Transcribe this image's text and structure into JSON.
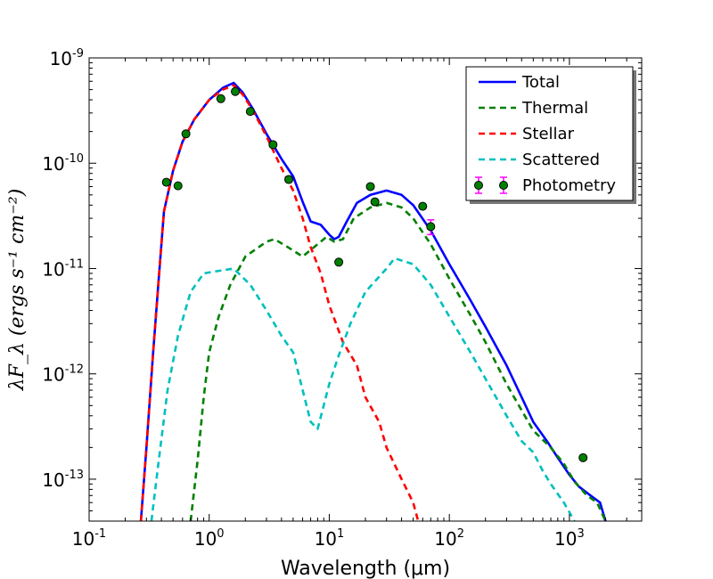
{
  "chart_data": {
    "type": "line",
    "xscale": "log",
    "yscale": "log",
    "xlim": [
      0.1,
      4000
    ],
    "ylim": [
      4e-14,
      1e-09
    ],
    "xlabel": "Wavelength (μm)",
    "ylabel": "λF_λ (ergs s⁻¹ cm⁻²)",
    "x_ticks": [
      {
        "value": 0.1,
        "base": "10",
        "exp": "-1"
      },
      {
        "value": 1,
        "base": "10",
        "exp": "0"
      },
      {
        "value": 10,
        "base": "10",
        "exp": "1"
      },
      {
        "value": 100,
        "base": "10",
        "exp": "2"
      },
      {
        "value": 1000,
        "base": "10",
        "exp": "3"
      }
    ],
    "y_ticks": [
      {
        "value": 1e-13,
        "base": "10",
        "exp": "-13"
      },
      {
        "value": 1e-12,
        "base": "10",
        "exp": "-12"
      },
      {
        "value": 1e-11,
        "base": "10",
        "exp": "-11"
      },
      {
        "value": 1e-10,
        "base": "10",
        "exp": "-10"
      },
      {
        "value": 1e-09,
        "base": "10",
        "exp": "-9"
      }
    ],
    "series": [
      {
        "name": "Total",
        "color": "#0000ff",
        "style": "solid",
        "width": 2.6,
        "points": [
          [
            0.27,
            4e-14
          ],
          [
            0.3,
            2e-13
          ],
          [
            0.34,
            1.5e-12
          ],
          [
            0.38,
            8e-12
          ],
          [
            0.42,
            3.5e-11
          ],
          [
            0.5,
            8.5e-11
          ],
          [
            0.6,
            1.6e-10
          ],
          [
            0.75,
            2.6e-10
          ],
          [
            1.0,
            4e-10
          ],
          [
            1.3,
            5.2e-10
          ],
          [
            1.6,
            5.8e-10
          ],
          [
            1.9,
            4.7e-10
          ],
          [
            2.3,
            3.3e-10
          ],
          [
            3.0,
            1.9e-10
          ],
          [
            4.0,
            1.1e-10
          ],
          [
            5.0,
            7.5e-11
          ],
          [
            6.0,
            4.3e-11
          ],
          [
            7.0,
            2.8e-11
          ],
          [
            8.5,
            2.6e-11
          ],
          [
            10,
            2.1e-11
          ],
          [
            11,
            1.9e-11
          ],
          [
            12,
            2e-11
          ],
          [
            14,
            2.8e-11
          ],
          [
            17,
            4.2e-11
          ],
          [
            22,
            5e-11
          ],
          [
            30,
            5.5e-11
          ],
          [
            40,
            5e-11
          ],
          [
            50,
            4e-11
          ],
          [
            70,
            2.3e-11
          ],
          [
            100,
            1.1e-11
          ],
          [
            150,
            5e-12
          ],
          [
            200,
            2.8e-12
          ],
          [
            300,
            1.2e-12
          ],
          [
            400,
            6e-13
          ],
          [
            500,
            3.5e-13
          ],
          [
            650,
            2.3e-13
          ],
          [
            800,
            1.6e-13
          ],
          [
            1000,
            1.1e-13
          ],
          [
            1200,
            8.5e-14
          ],
          [
            1500,
            7e-14
          ],
          [
            1800,
            6e-14
          ],
          [
            2000,
            4e-14
          ]
        ]
      },
      {
        "name": "Thermal",
        "color": "#008000",
        "style": "dashed",
        "width": 2.6,
        "points": [
          [
            0.7,
            4e-14
          ],
          [
            0.8,
            1.5e-13
          ],
          [
            0.9,
            6e-13
          ],
          [
            1.0,
            1.6e-12
          ],
          [
            1.2,
            3.5e-12
          ],
          [
            1.5,
            7e-12
          ],
          [
            2.0,
            1.3e-11
          ],
          [
            3.0,
            1.8e-11
          ],
          [
            3.5,
            1.9e-11
          ],
          [
            4.5,
            1.6e-11
          ],
          [
            6,
            1.3e-11
          ],
          [
            8,
            1.7e-11
          ],
          [
            9.5,
            2e-11
          ],
          [
            11,
            1.8e-11
          ],
          [
            13,
            1.9e-11
          ],
          [
            16,
            3e-11
          ],
          [
            22,
            3.8e-11
          ],
          [
            30,
            4.2e-11
          ],
          [
            40,
            3.8e-11
          ],
          [
            50,
            3e-11
          ],
          [
            70,
            1.7e-11
          ],
          [
            100,
            8e-12
          ],
          [
            150,
            3.6e-12
          ],
          [
            200,
            2e-12
          ],
          [
            300,
            8e-13
          ],
          [
            400,
            4.5e-13
          ],
          [
            500,
            2.9e-13
          ],
          [
            700,
            2e-13
          ],
          [
            900,
            1.4e-13
          ],
          [
            1100,
            9.5e-14
          ],
          [
            1400,
            7e-14
          ],
          [
            1700,
            6e-14
          ],
          [
            2000,
            4e-14
          ]
        ]
      },
      {
        "name": "Stellar",
        "color": "#ff0000",
        "style": "dashed",
        "width": 2.6,
        "points": [
          [
            0.27,
            4e-14
          ],
          [
            0.3,
            2e-13
          ],
          [
            0.34,
            1.5e-12
          ],
          [
            0.38,
            8e-12
          ],
          [
            0.42,
            3.5e-11
          ],
          [
            0.5,
            8.5e-11
          ],
          [
            0.6,
            1.6e-10
          ],
          [
            0.75,
            2.6e-10
          ],
          [
            1.0,
            4e-10
          ],
          [
            1.3,
            5e-10
          ],
          [
            1.6,
            5.5e-10
          ],
          [
            1.9,
            4.5e-10
          ],
          [
            2.3,
            3.2e-10
          ],
          [
            3.0,
            1.8e-10
          ],
          [
            4.0,
            9e-11
          ],
          [
            5.0,
            5.5e-11
          ],
          [
            6.0,
            3e-11
          ],
          [
            7.0,
            1.6e-11
          ],
          [
            8.5,
            9e-12
          ],
          [
            10,
            4.5e-12
          ],
          [
            13,
            2e-12
          ],
          [
            17,
            1.2e-12
          ],
          [
            20,
            6e-13
          ],
          [
            26,
            3.5e-13
          ],
          [
            30,
            2e-13
          ],
          [
            40,
            1e-13
          ],
          [
            50,
            6e-14
          ],
          [
            55,
            4e-14
          ]
        ]
      },
      {
        "name": "Scattered",
        "color": "#00bfbf",
        "style": "dashed",
        "width": 2.6,
        "points": [
          [
            0.33,
            4e-14
          ],
          [
            0.38,
            1.5e-13
          ],
          [
            0.45,
            7e-13
          ],
          [
            0.55,
            2.3e-12
          ],
          [
            0.7,
            6e-12
          ],
          [
            0.9,
            9e-12
          ],
          [
            1.2,
            9.5e-12
          ],
          [
            1.6,
            1e-11
          ],
          [
            2.2,
            7e-12
          ],
          [
            3.0,
            4e-12
          ],
          [
            4.0,
            2.3e-12
          ],
          [
            5.0,
            1.6e-12
          ],
          [
            6.0,
            7e-13
          ],
          [
            7.0,
            3.5e-13
          ],
          [
            8.0,
            3e-13
          ],
          [
            10,
            8e-13
          ],
          [
            12,
            1.5e-12
          ],
          [
            15,
            3e-12
          ],
          [
            20,
            6e-12
          ],
          [
            30,
            1e-11
          ],
          [
            35,
            1.25e-11
          ],
          [
            50,
            1.1e-11
          ],
          [
            70,
            7e-12
          ],
          [
            100,
            3.5e-12
          ],
          [
            150,
            1.6e-12
          ],
          [
            200,
            9e-13
          ],
          [
            300,
            4e-13
          ],
          [
            400,
            2.3e-13
          ],
          [
            500,
            1.8e-13
          ],
          [
            600,
            1.2e-13
          ],
          [
            700,
            9e-14
          ],
          [
            900,
            6e-14
          ],
          [
            1100,
            4e-14
          ]
        ]
      }
    ],
    "photometry": {
      "name": "Photometry",
      "marker_color": "#008000",
      "errorbar_color": "#ff00ff",
      "points": [
        {
          "x": 0.44,
          "y": 6.6e-11
        },
        {
          "x": 0.55,
          "y": 6.1e-11
        },
        {
          "x": 0.64,
          "y": 1.9e-10
        },
        {
          "x": 1.25,
          "y": 4.1e-10
        },
        {
          "x": 1.65,
          "y": 4.8e-10
        },
        {
          "x": 2.2,
          "y": 3.1e-10
        },
        {
          "x": 3.4,
          "y": 1.5e-10
        },
        {
          "x": 4.6,
          "y": 7e-11
        },
        {
          "x": 12,
          "y": 1.15e-11
        },
        {
          "x": 22,
          "y": 6e-11
        },
        {
          "x": 24,
          "y": 4.3e-11
        },
        {
          "x": 60,
          "y": 3.9e-11
        },
        {
          "x": 70,
          "y": 2.5e-11,
          "err_low": 2.1e-11,
          "err_high": 2.9e-11
        },
        {
          "x": 1300,
          "y": 1.6e-13
        }
      ]
    },
    "legend": {
      "position": "top-right",
      "entries": [
        "Total",
        "Thermal",
        "Stellar",
        "Scattered",
        "Photometry"
      ]
    }
  }
}
